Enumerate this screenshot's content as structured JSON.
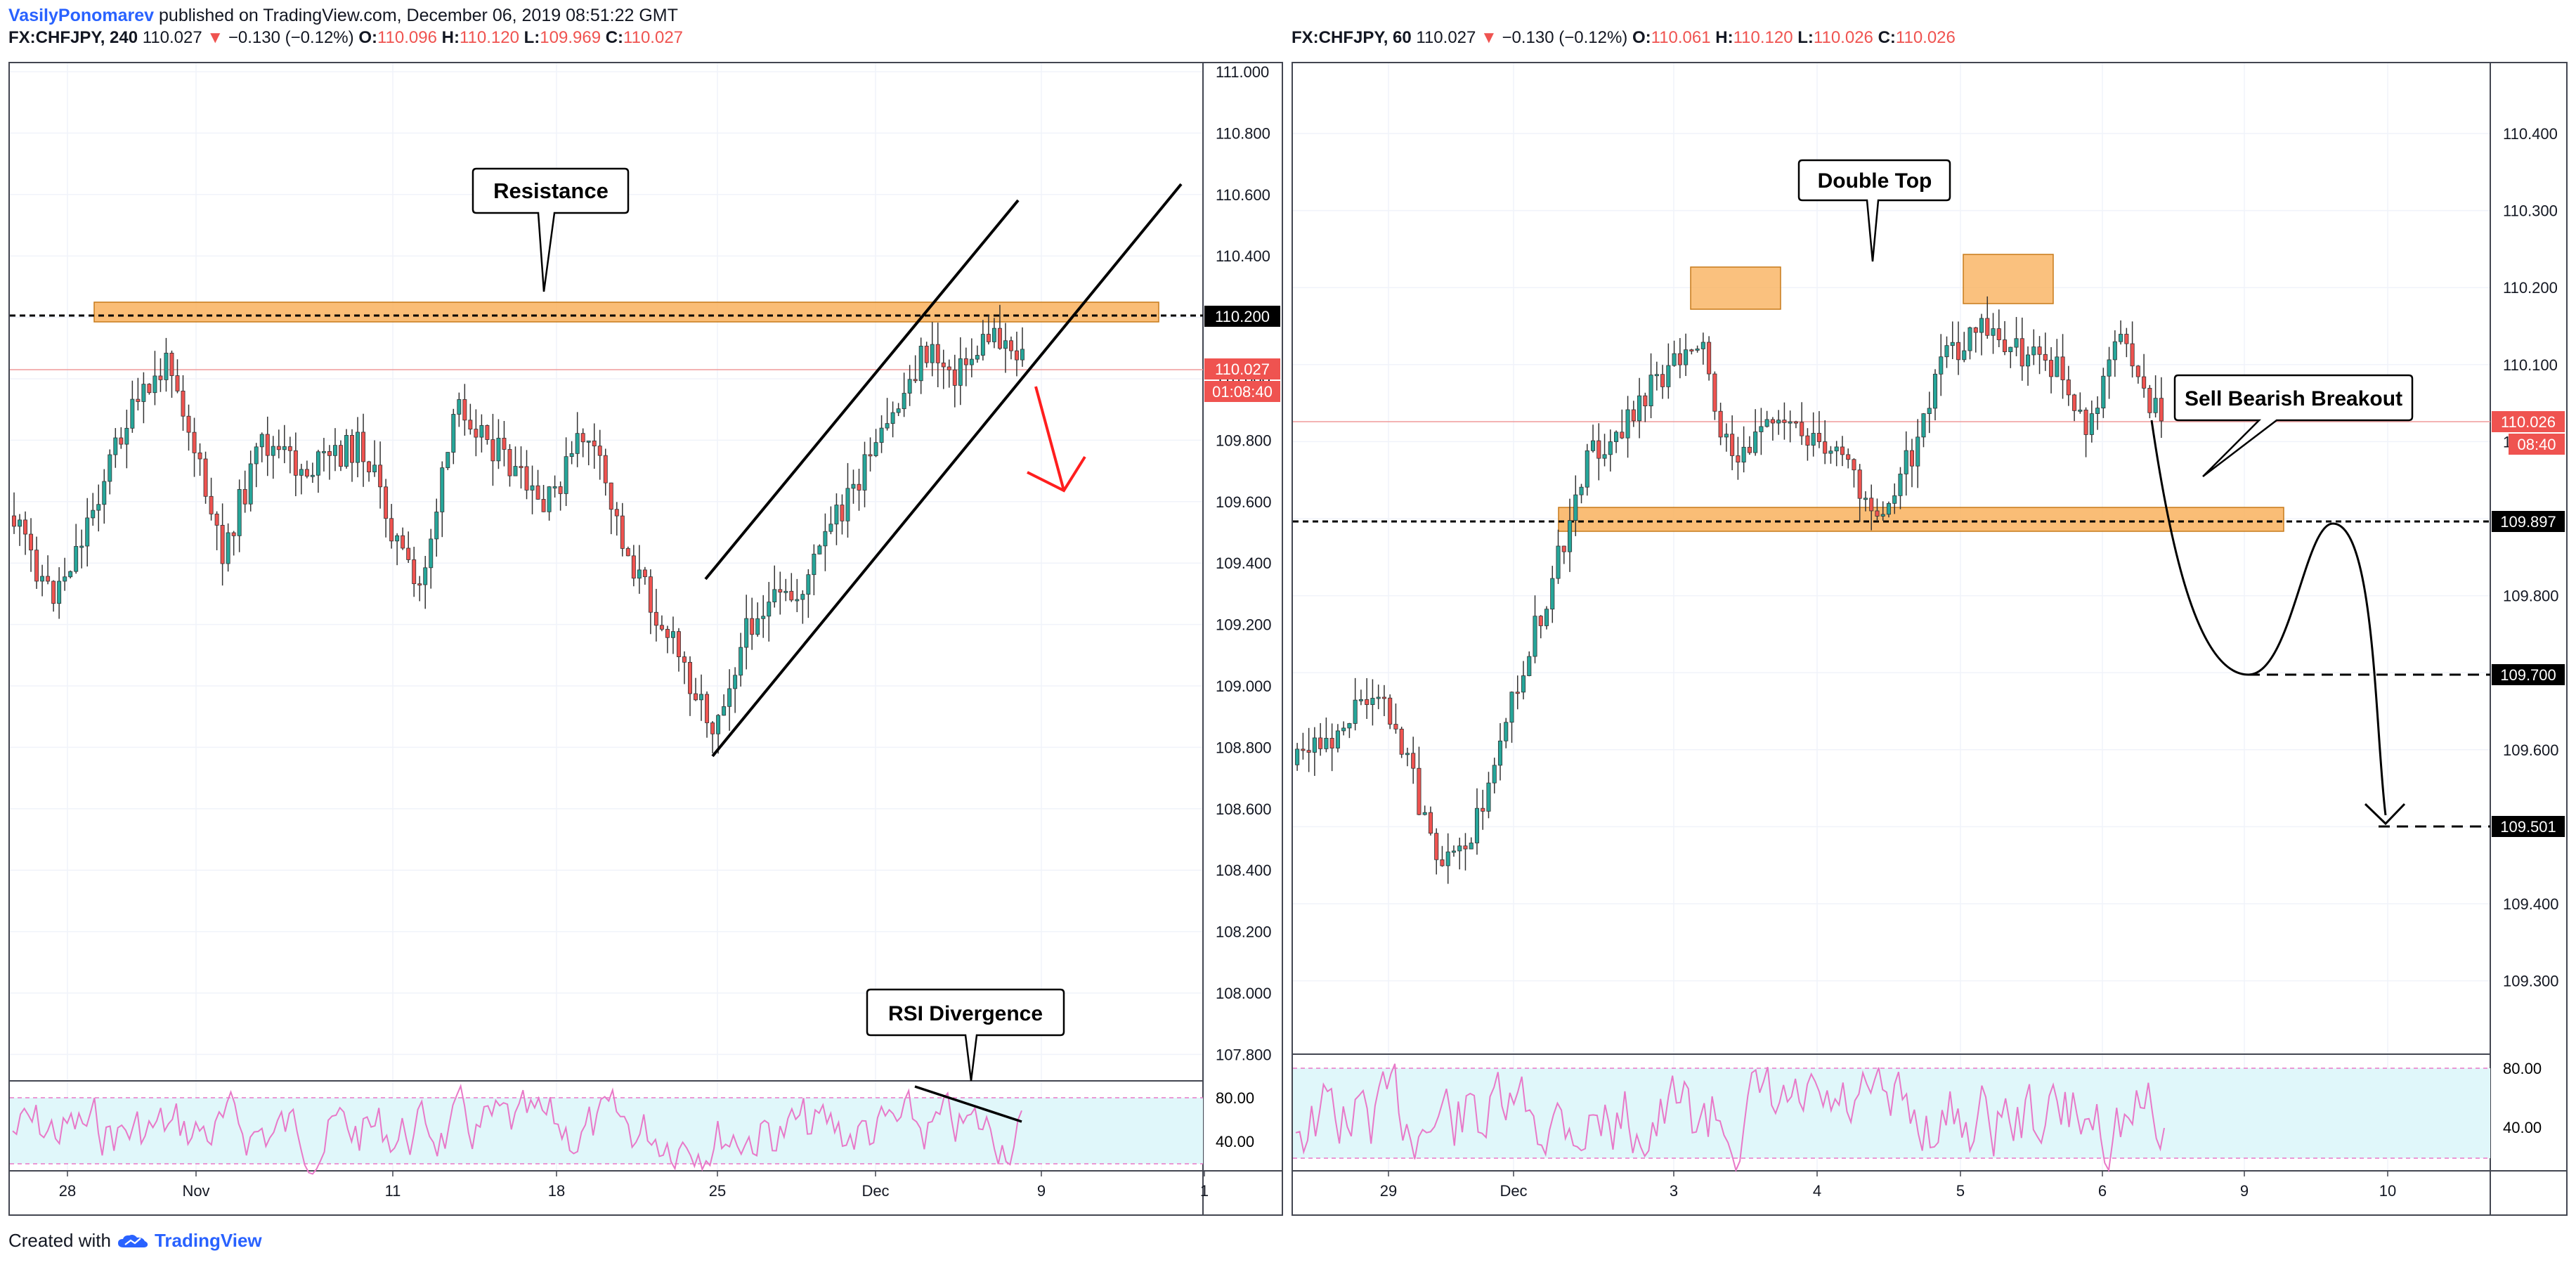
{
  "header": {
    "author": "VasilyPonomarev",
    "published_text": "published on TradingView.com, December 06, 2019 08:51:22 GMT"
  },
  "left_chart": {
    "symbol": "FX:CHFJPY, 240",
    "last": "110.027",
    "change": "−0.130 (−0.12%)",
    "o_label": "O:",
    "o": "110.096",
    "h_label": "H:",
    "h": "110.120",
    "l_label": "L:",
    "l": "109.969",
    "c_label": "C:",
    "c": "110.027",
    "price_ticks": [
      "111.000",
      "110.800",
      "110.600",
      "110.400",
      "110.200",
      "110.000",
      "109.800",
      "109.600",
      "109.400",
      "109.200",
      "109.000",
      "108.800",
      "108.600",
      "108.400",
      "108.200",
      "108.000",
      "107.800"
    ],
    "date_ticks": [
      "28",
      "Nov",
      "11",
      "18",
      "25",
      "Dec",
      "9",
      "1"
    ],
    "resistance_price": "110.200",
    "last_price_badge": "110.027",
    "countdown": "01:08:40",
    "annotations": {
      "resistance": "Resistance",
      "rsi_divergence": "RSI Divergence"
    },
    "rsi_ticks": [
      "80.00",
      "40.00"
    ]
  },
  "right_chart": {
    "symbol": "FX:CHFJPY, 60",
    "last": "110.027",
    "change": "−0.130 (−0.12%)",
    "o_label": "O:",
    "o": "110.061",
    "h_label": "H:",
    "h": "110.120",
    "l_label": "L:",
    "l": "110.026",
    "c_label": "C:",
    "c": "110.026",
    "price_ticks": [
      "110.400",
      "110.300",
      "110.200",
      "110.100",
      "110.000",
      "109.900",
      "109.800",
      "109.700",
      "109.600",
      "109.500",
      "109.400",
      "109.300"
    ],
    "date_ticks": [
      "29",
      "Dec",
      "3",
      "4",
      "5",
      "6",
      "9",
      "10"
    ],
    "support_price": "109.897",
    "target1_price": "109.700",
    "target2_price": "109.501",
    "last_price_badge": "110.026",
    "countdown": "08:40",
    "annotations": {
      "double_top": "Double Top",
      "sell_breakout": "Sell Bearish Breakout"
    },
    "rsi_ticks": [
      "80.00",
      "40.00"
    ]
  },
  "footer": {
    "created_with": "Created with",
    "brand": "TradingView"
  },
  "colors": {
    "up": "#26a69a",
    "down": "#ef5350",
    "zone": "#f9b25e",
    "rsi": "#e879c8",
    "rsi_bg": "#e0f7fa",
    "accent": "#2962ff"
  }
}
